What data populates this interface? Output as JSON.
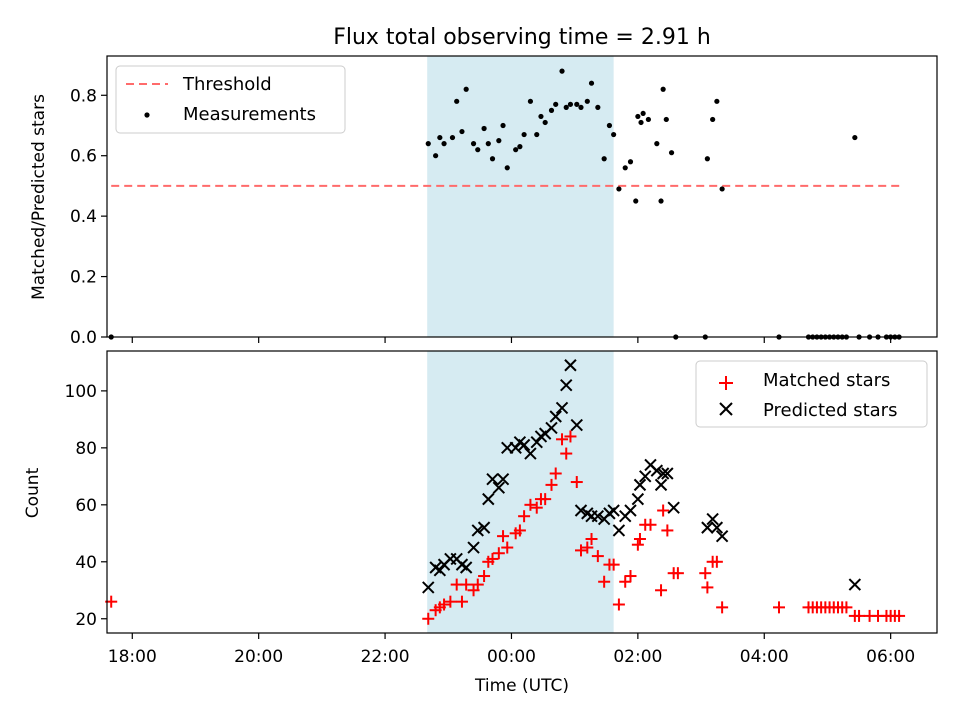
{
  "title": "Flux total observing time = 2.91 h",
  "chart_data": [
    {
      "type": "scatter",
      "ylabel": "Matched/Predicted stars",
      "xlim": [
        "17:36",
        "06:44"
      ],
      "ylim": [
        0,
        0.93
      ],
      "yticks": [
        0.0,
        0.2,
        0.4,
        0.6,
        0.8
      ],
      "ytick_labels": [
        "0.0",
        "0.2",
        "0.4",
        "0.6",
        "0.8"
      ],
      "grid": false,
      "legend_position": "top-left",
      "legend": [
        "Threshold",
        "Measurements"
      ],
      "shaded_interval": {
        "start": "22:40",
        "end": "01:37",
        "color": "#add8e6"
      },
      "threshold": {
        "name": "Threshold",
        "value": 0.5,
        "x_start": "17:40",
        "x_end": "06:10",
        "color": "#ff6b6b"
      },
      "series": [
        {
          "name": "Measurements",
          "color": "#000000",
          "points": [
            [
              "17:40",
              0.0
            ],
            [
              "22:41",
              0.64
            ],
            [
              "22:48",
              0.6
            ],
            [
              "22:52",
              0.66
            ],
            [
              "22:56",
              0.64
            ],
            [
              "23:04",
              0.66
            ],
            [
              "23:08",
              0.78
            ],
            [
              "23:13",
              0.68
            ],
            [
              "23:17",
              0.82
            ],
            [
              "23:24",
              0.64
            ],
            [
              "23:28",
              0.62
            ],
            [
              "23:34",
              0.69
            ],
            [
              "23:38",
              0.64
            ],
            [
              "23:42",
              0.59
            ],
            [
              "23:48",
              0.65
            ],
            [
              "23:52",
              0.7
            ],
            [
              "23:56",
              0.56
            ],
            [
              "00:04",
              0.62
            ],
            [
              "00:08",
              0.63
            ],
            [
              "00:12",
              0.67
            ],
            [
              "00:18",
              0.78
            ],
            [
              "00:24",
              0.67
            ],
            [
              "00:28",
              0.73
            ],
            [
              "00:32",
              0.71
            ],
            [
              "00:38",
              0.75
            ],
            [
              "00:42",
              0.77
            ],
            [
              "00:48",
              0.88
            ],
            [
              "00:52",
              0.76
            ],
            [
              "00:56",
              0.77
            ],
            [
              "01:02",
              0.77
            ],
            [
              "01:06",
              0.76
            ],
            [
              "01:12",
              0.78
            ],
            [
              "01:16",
              0.84
            ],
            [
              "01:22",
              0.76
            ],
            [
              "01:28",
              0.59
            ],
            [
              "01:33",
              0.7
            ],
            [
              "01:37",
              0.67
            ],
            [
              "01:42",
              0.49
            ],
            [
              "01:48",
              0.56
            ],
            [
              "01:53",
              0.58
            ],
            [
              "01:58",
              0.45
            ],
            [
              "02:00",
              0.73
            ],
            [
              "02:03",
              0.71
            ],
            [
              "02:05",
              0.74
            ],
            [
              "02:10",
              0.72
            ],
            [
              "02:18",
              0.64
            ],
            [
              "02:22",
              0.45
            ],
            [
              "02:24",
              0.82
            ],
            [
              "02:27",
              0.72
            ],
            [
              "02:32",
              0.61
            ],
            [
              "02:36",
              0.0
            ],
            [
              "03:04",
              0.0
            ],
            [
              "03:06",
              0.59
            ],
            [
              "03:11",
              0.72
            ],
            [
              "03:15",
              0.78
            ],
            [
              "03:20",
              0.49
            ],
            [
              "04:14",
              0.0
            ],
            [
              "04:42",
              0.0
            ],
            [
              "04:46",
              0.0
            ],
            [
              "04:50",
              0.0
            ],
            [
              "04:54",
              0.0
            ],
            [
              "04:58",
              0.0
            ],
            [
              "05:02",
              0.0
            ],
            [
              "05:06",
              0.0
            ],
            [
              "05:10",
              0.0
            ],
            [
              "05:14",
              0.0
            ],
            [
              "05:18",
              0.0
            ],
            [
              "05:26",
              0.66
            ],
            [
              "05:30",
              0.0
            ],
            [
              "05:40",
              0.0
            ],
            [
              "05:48",
              0.0
            ],
            [
              "05:56",
              0.0
            ],
            [
              "06:00",
              0.0
            ],
            [
              "06:04",
              0.0
            ],
            [
              "06:08",
              0.0
            ]
          ]
        }
      ]
    },
    {
      "type": "scatter",
      "xlabel": "Time (UTC)",
      "ylabel": "Count",
      "xlim": [
        "17:36",
        "06:44"
      ],
      "ylim": [
        15,
        114
      ],
      "xticks": [
        "18:00",
        "20:00",
        "22:00",
        "00:00",
        "02:00",
        "04:00",
        "06:00"
      ],
      "yticks": [
        20,
        40,
        60,
        80,
        100
      ],
      "ytick_labels": [
        "20",
        "40",
        "60",
        "80",
        "100"
      ],
      "grid": false,
      "legend_position": "top-right",
      "shaded_interval": {
        "start": "22:40",
        "end": "01:37",
        "color": "#add8e6"
      },
      "series": [
        {
          "name": "Matched stars",
          "color": "#ff0000",
          "marker": "plus",
          "points": [
            [
              "17:40",
              26
            ],
            [
              "22:41",
              20
            ],
            [
              "22:48",
              23
            ],
            [
              "22:52",
              24
            ],
            [
              "22:56",
              25
            ],
            [
              "23:02",
              26
            ],
            [
              "23:08",
              32
            ],
            [
              "23:13",
              26
            ],
            [
              "23:17",
              32
            ],
            [
              "23:24",
              30
            ],
            [
              "23:28",
              32
            ],
            [
              "23:34",
              35
            ],
            [
              "23:38",
              40
            ],
            [
              "23:42",
              41
            ],
            [
              "23:48",
              43
            ],
            [
              "23:52",
              49
            ],
            [
              "23:56",
              45
            ],
            [
              "00:04",
              50
            ],
            [
              "00:08",
              51
            ],
            [
              "00:12",
              56
            ],
            [
              "00:18",
              60
            ],
            [
              "00:24",
              59
            ],
            [
              "00:28",
              62
            ],
            [
              "00:32",
              62
            ],
            [
              "00:38",
              67
            ],
            [
              "00:42",
              71
            ],
            [
              "00:48",
              83
            ],
            [
              "00:52",
              78
            ],
            [
              "00:56",
              84
            ],
            [
              "01:02",
              68
            ],
            [
              "01:06",
              44
            ],
            [
              "01:12",
              45
            ],
            [
              "01:16",
              48
            ],
            [
              "01:22",
              42
            ],
            [
              "01:28",
              33
            ],
            [
              "01:33",
              39
            ],
            [
              "01:37",
              39
            ],
            [
              "01:42",
              25
            ],
            [
              "01:48",
              33
            ],
            [
              "01:53",
              35
            ],
            [
              "02:00",
              46
            ],
            [
              "02:02",
              48
            ],
            [
              "02:07",
              53
            ],
            [
              "02:12",
              53
            ],
            [
              "02:22",
              30
            ],
            [
              "02:24",
              58
            ],
            [
              "02:28",
              51
            ],
            [
              "02:34",
              36
            ],
            [
              "02:38",
              36
            ],
            [
              "03:04",
              36
            ],
            [
              "03:06",
              31
            ],
            [
              "03:11",
              40
            ],
            [
              "03:15",
              40
            ],
            [
              "03:20",
              24
            ],
            [
              "04:14",
              24
            ],
            [
              "04:42",
              24
            ],
            [
              "04:46",
              24
            ],
            [
              "04:50",
              24
            ],
            [
              "04:54",
              24
            ],
            [
              "04:58",
              24
            ],
            [
              "05:02",
              24
            ],
            [
              "05:06",
              24
            ],
            [
              "05:10",
              24
            ],
            [
              "05:14",
              24
            ],
            [
              "05:18",
              24
            ],
            [
              "05:26",
              21
            ],
            [
              "05:30",
              21
            ],
            [
              "05:40",
              21
            ],
            [
              "05:48",
              21
            ],
            [
              "05:56",
              21
            ],
            [
              "06:00",
              21
            ],
            [
              "06:04",
              21
            ],
            [
              "06:08",
              21
            ]
          ]
        },
        {
          "name": "Predicted stars",
          "color": "#000000",
          "marker": "x",
          "points": [
            [
              "22:41",
              31
            ],
            [
              "22:48",
              38
            ],
            [
              "22:52",
              37
            ],
            [
              "22:56",
              39
            ],
            [
              "23:02",
              41
            ],
            [
              "23:08",
              41
            ],
            [
              "23:13",
              39
            ],
            [
              "23:17",
              38
            ],
            [
              "23:24",
              45
            ],
            [
              "23:28",
              51
            ],
            [
              "23:34",
              52
            ],
            [
              "23:38",
              62
            ],
            [
              "23:42",
              69
            ],
            [
              "23:48",
              66
            ],
            [
              "23:52",
              69
            ],
            [
              "23:56",
              80
            ],
            [
              "00:04",
              80
            ],
            [
              "00:08",
              82
            ],
            [
              "00:12",
              81
            ],
            [
              "00:18",
              78
            ],
            [
              "00:24",
              82
            ],
            [
              "00:28",
              84
            ],
            [
              "00:32",
              85
            ],
            [
              "00:38",
              87
            ],
            [
              "00:42",
              91
            ],
            [
              "00:48",
              94
            ],
            [
              "00:52",
              102
            ],
            [
              "00:56",
              109
            ],
            [
              "01:02",
              88
            ],
            [
              "01:06",
              58
            ],
            [
              "01:12",
              57
            ],
            [
              "01:16",
              56
            ],
            [
              "01:22",
              56
            ],
            [
              "01:28",
              55
            ],
            [
              "01:33",
              57
            ],
            [
              "01:37",
              58
            ],
            [
              "01:42",
              51
            ],
            [
              "01:48",
              56
            ],
            [
              "01:53",
              58
            ],
            [
              "02:00",
              62
            ],
            [
              "02:02",
              67
            ],
            [
              "02:07",
              70
            ],
            [
              "02:12",
              74
            ],
            [
              "02:18",
              72
            ],
            [
              "02:22",
              67
            ],
            [
              "02:24",
              71
            ],
            [
              "02:28",
              71
            ],
            [
              "02:34",
              59
            ],
            [
              "03:06",
              52
            ],
            [
              "03:11",
              55
            ],
            [
              "03:15",
              52
            ],
            [
              "03:20",
              49
            ],
            [
              "05:26",
              32
            ]
          ]
        }
      ]
    }
  ]
}
